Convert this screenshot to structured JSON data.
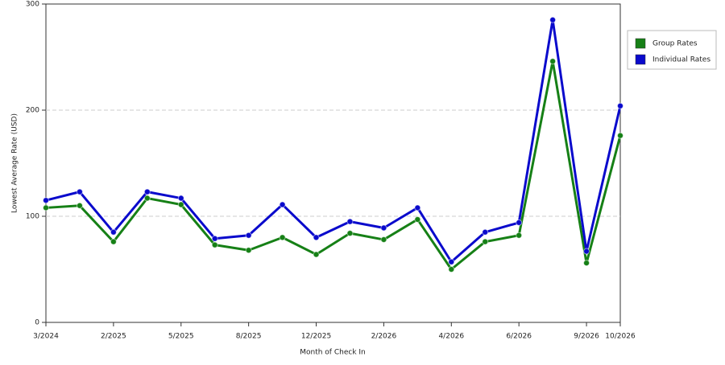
{
  "chart_data": {
    "type": "line",
    "x_label": "Month of Check In",
    "y_label": "Lowest Average Rate (USD)",
    "categories": [
      "3/2024",
      null,
      "2/2025",
      null,
      "5/2025",
      null,
      "8/2025",
      null,
      "12/2025",
      null,
      "2/2026",
      null,
      "4/2026",
      null,
      "6/2026",
      null,
      "9/2026",
      "10/2026"
    ],
    "series": [
      {
        "name": "Group Rates",
        "color": "#168016",
        "values": [
          108,
          110,
          76,
          117,
          111,
          73,
          68,
          80,
          64,
          84,
          78,
          97,
          50,
          76,
          82,
          246,
          56,
          176
        ]
      },
      {
        "name": "Individual Rates",
        "color": "#0a0acc",
        "values": [
          115,
          123,
          85,
          123,
          117,
          79,
          82,
          111,
          80,
          95,
          89,
          108,
          57,
          85,
          94,
          285,
          67,
          204
        ]
      }
    ],
    "ylim": [
      0,
      300
    ],
    "yticks": [
      0,
      100,
      200,
      300
    ],
    "grid": true,
    "legend": "right"
  }
}
